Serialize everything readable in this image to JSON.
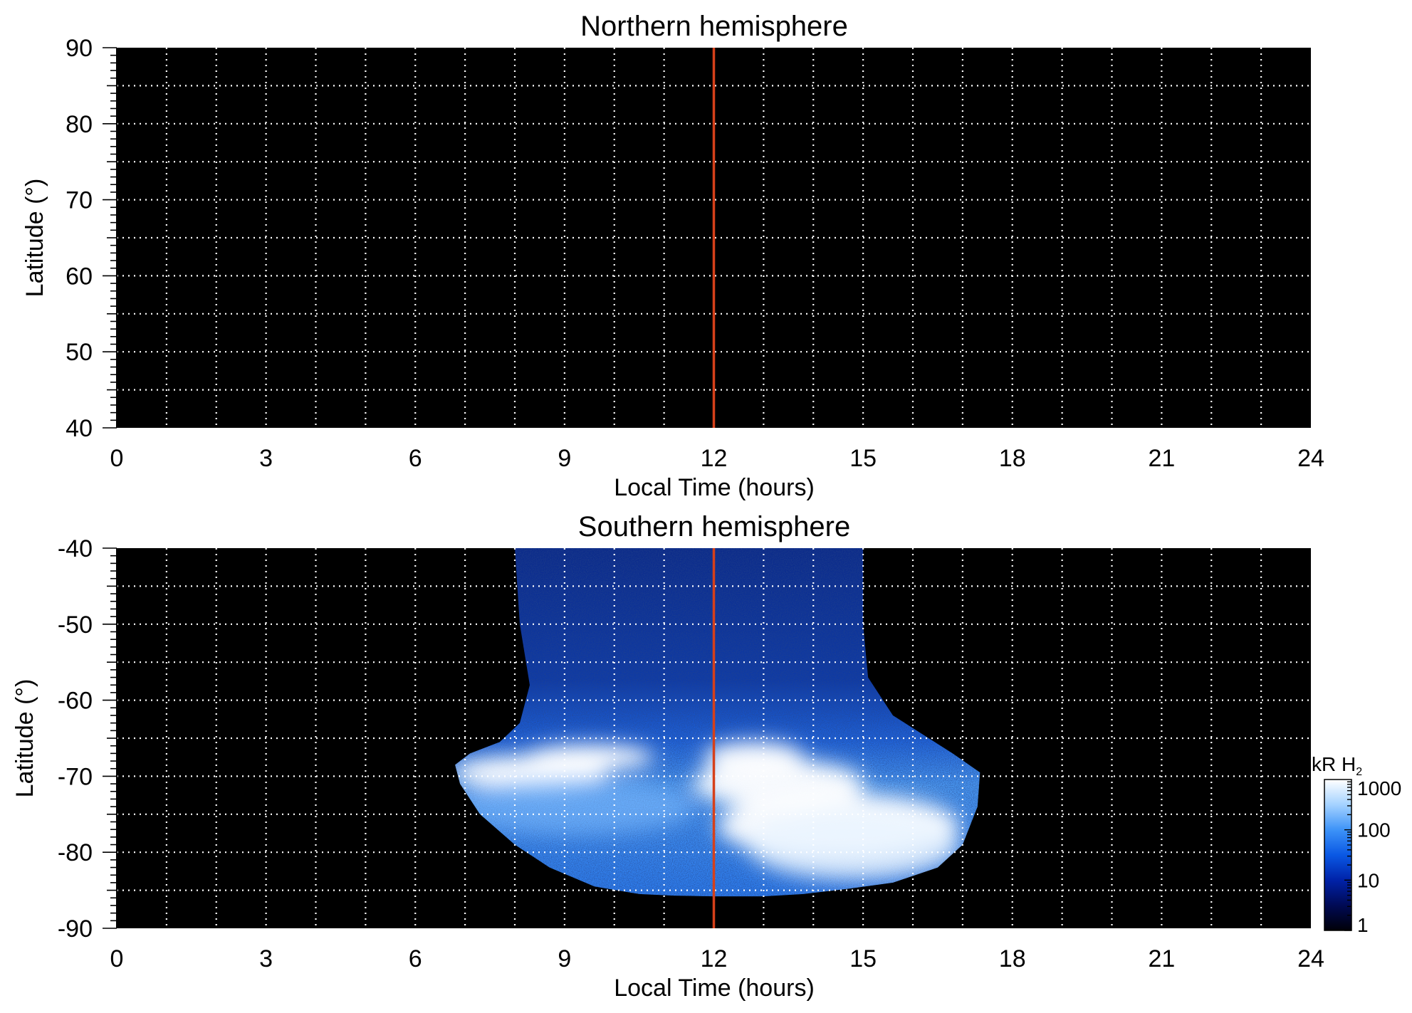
{
  "chart_data": [
    {
      "type": "heatmap",
      "title": "Northern hemisphere",
      "xlabel": "Local Time (hours)",
      "ylabel": "Latitude (°)",
      "xlim": [
        0,
        24
      ],
      "ylim": [
        40,
        90
      ],
      "x_ticks": [
        "0",
        "3",
        "6",
        "9",
        "12",
        "15",
        "18",
        "21",
        "24"
      ],
      "y_ticks": [
        "90",
        "80",
        "70",
        "60",
        "50",
        "40"
      ],
      "grid": true,
      "background": "#000000",
      "reference_line": {
        "x": 12,
        "color": "#d6401a"
      },
      "emission_region": null
    },
    {
      "type": "heatmap",
      "title": "Southern hemisphere",
      "xlabel": "Local Time (hours)",
      "ylabel": "Latitude (°)",
      "xlim": [
        0,
        24
      ],
      "ylim": [
        -90,
        -40
      ],
      "x_ticks": [
        "0",
        "3",
        "6",
        "9",
        "12",
        "15",
        "18",
        "21",
        "24"
      ],
      "y_ticks": [
        "-40",
        "-50",
        "-60",
        "-70",
        "-80",
        "-90"
      ],
      "grid": true,
      "background": "#000000",
      "reference_line": {
        "x": 12,
        "color": "#d6401a"
      },
      "emission_region": {
        "outline": [
          [
            8.0,
            -40
          ],
          [
            8.1,
            -50
          ],
          [
            8.3,
            -58
          ],
          [
            8.1,
            -63
          ],
          [
            7.7,
            -65.5
          ],
          [
            7.1,
            -67
          ],
          [
            6.8,
            -68.5
          ],
          [
            6.9,
            -71
          ],
          [
            7.3,
            -75
          ],
          [
            8.0,
            -79
          ],
          [
            8.7,
            -82
          ],
          [
            9.6,
            -84.5
          ],
          [
            10.5,
            -85.5
          ],
          [
            11.2,
            -85.7
          ],
          [
            12.0,
            -85.8
          ],
          [
            13.0,
            -85.8
          ],
          [
            13.8,
            -85.5
          ],
          [
            14.7,
            -84.8
          ],
          [
            15.6,
            -84
          ],
          [
            16.5,
            -82
          ],
          [
            17.0,
            -79
          ],
          [
            17.3,
            -74
          ],
          [
            17.35,
            -69.5
          ],
          [
            16.8,
            -67
          ],
          [
            16.2,
            -64.5
          ],
          [
            15.6,
            -62
          ],
          [
            15.1,
            -57
          ],
          [
            15.0,
            -50
          ],
          [
            15.0,
            -40
          ]
        ],
        "bright_features": [
          {
            "lt": 8.3,
            "lat": -69.5,
            "kR": 1000
          },
          {
            "lt": 9.5,
            "lat": -67.5,
            "kR": 1000
          },
          {
            "lt": 12.8,
            "lat": -67.5,
            "kR": 1000
          },
          {
            "lt": 13.3,
            "lat": -71.0,
            "kR": 1000
          },
          {
            "lt": 14.5,
            "lat": -76.5,
            "kR": 1000
          }
        ]
      }
    }
  ],
  "colorbar": {
    "title_main": "kR H",
    "title_sub": "2",
    "ticks": [
      "1000",
      "100",
      "10",
      "1"
    ],
    "scale": "log",
    "range": [
      1,
      1000
    ],
    "stops": [
      "#000008",
      "#000a55",
      "#0022a8",
      "#0a58e4",
      "#3d93f8",
      "#a4d2ff",
      "#ffffff"
    ]
  }
}
